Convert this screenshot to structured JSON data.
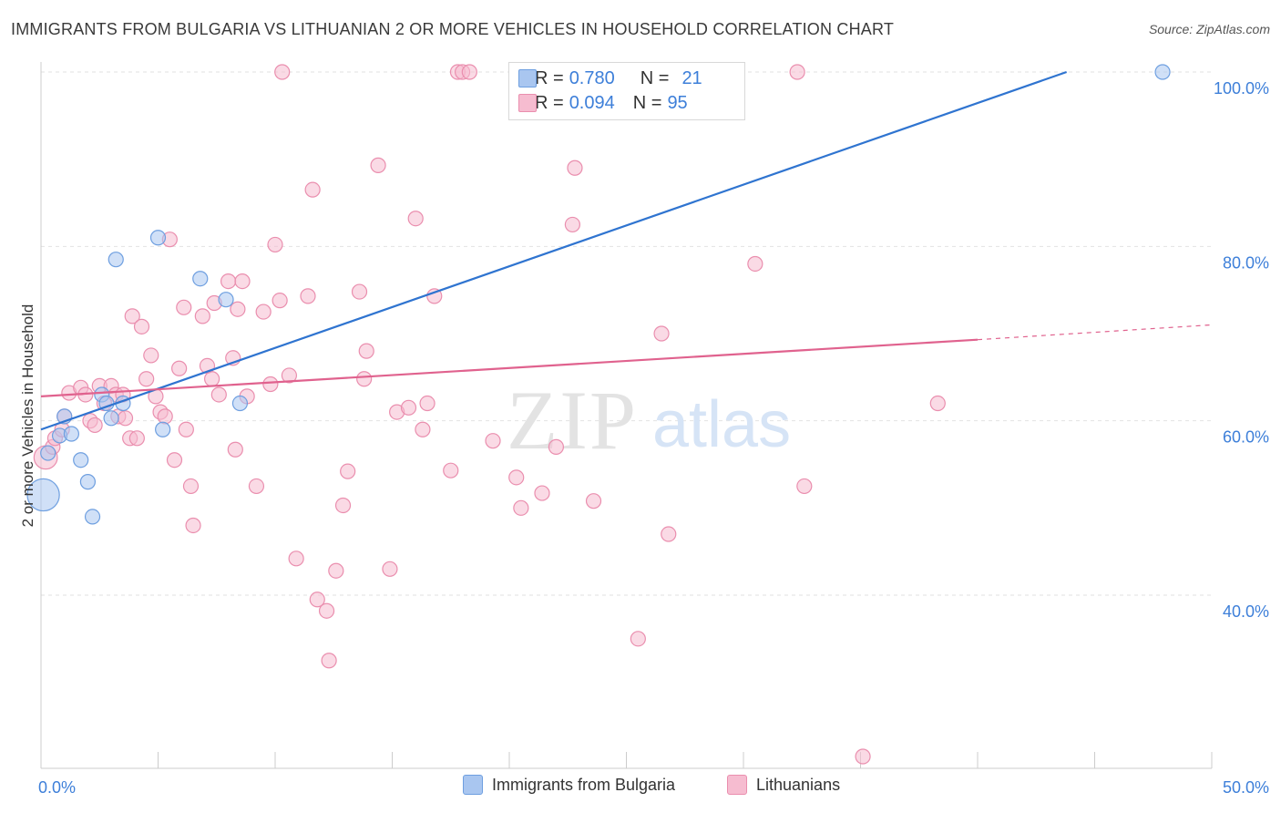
{
  "header": {
    "title": "IMMIGRANTS FROM BULGARIA VS LITHUANIAN 2 OR MORE VEHICLES IN HOUSEHOLD CORRELATION CHART",
    "source": "Source: ZipAtlas.com"
  },
  "watermark": {
    "zip": "ZIP",
    "atlas": "atlas"
  },
  "legend": {
    "series1": {
      "r_label": "R =",
      "r_value": "0.780",
      "n_label": "N =",
      "n_value": "21"
    },
    "series2": {
      "r_label": "R =",
      "r_value": "0.094",
      "n_label": "N =",
      "n_value": "95"
    }
  },
  "bottom_legend": {
    "series1_label": "Immigrants from Bulgaria",
    "series2_label": "Lithuanians"
  },
  "colors": {
    "blue_fill": "#a9c6f0",
    "blue_stroke": "#6e9fe0",
    "blue_line": "#2f74d0",
    "pink_fill": "#f6bcd0",
    "pink_stroke": "#ea8eae",
    "pink_line": "#e0628e",
    "grid": "#e2e2e2",
    "tick_text": "#3d7fd9"
  },
  "chart_data": {
    "type": "scatter",
    "title": "IMMIGRANTS FROM BULGARIA VS LITHUANIAN 2 OR MORE VEHICLES IN HOUSEHOLD CORRELATION CHART",
    "xlabel": "",
    "ylabel": "2 or more Vehicles in Household",
    "xlim": [
      0,
      50
    ],
    "ylim": [
      20,
      102
    ],
    "x_tick_labels": [
      {
        "value": 0,
        "label": "0.0%"
      },
      {
        "value": 50,
        "label": "50.0%"
      }
    ],
    "y_tick_labels": [
      {
        "value": 40,
        "label": "40.0%"
      },
      {
        "value": 60,
        "label": "60.0%"
      },
      {
        "value": 80,
        "label": "80.0%"
      },
      {
        "value": 100,
        "label": "100.0%"
      }
    ],
    "series": [
      {
        "name": "Immigrants from Bulgaria",
        "color": "#a9c6f0",
        "points": [
          [
            0.1,
            51.5,
            2.2
          ],
          [
            0.3,
            56.3,
            1
          ],
          [
            0.8,
            58.3,
            1
          ],
          [
            1.0,
            60.5,
            1
          ],
          [
            1.3,
            58.5,
            1
          ],
          [
            1.7,
            55.5,
            1
          ],
          [
            2.0,
            53.0,
            1
          ],
          [
            2.2,
            49.0,
            1
          ],
          [
            2.6,
            63.0,
            1
          ],
          [
            2.8,
            62.0,
            1
          ],
          [
            3.0,
            60.3,
            1
          ],
          [
            3.2,
            78.5,
            1
          ],
          [
            3.5,
            62.0,
            1
          ],
          [
            5.0,
            81.0,
            1
          ],
          [
            5.2,
            59.0,
            1
          ],
          [
            6.8,
            76.3,
            1
          ],
          [
            7.9,
            73.9,
            1
          ],
          [
            8.5,
            62.0,
            1
          ],
          [
            47.9,
            100.0,
            1
          ]
        ],
        "trend": {
          "x": [
            0,
            43.8
          ],
          "y": [
            59.0,
            100.0
          ],
          "style": "solid"
        }
      },
      {
        "name": "Lithuanians",
        "color": "#f6bcd0",
        "points": [
          [
            0.2,
            55.8,
            1.6
          ],
          [
            0.5,
            57.0,
            1
          ],
          [
            0.6,
            58.0,
            1
          ],
          [
            0.9,
            59.0,
            1
          ],
          [
            1.0,
            60.5,
            1
          ],
          [
            1.2,
            63.2,
            1
          ],
          [
            1.7,
            63.8,
            1
          ],
          [
            1.9,
            63.0,
            1
          ],
          [
            2.1,
            60.0,
            1
          ],
          [
            2.3,
            59.5,
            1
          ],
          [
            2.5,
            64.0,
            1
          ],
          [
            2.7,
            62.0,
            1
          ],
          [
            3.0,
            64.0,
            1
          ],
          [
            3.2,
            63.0,
            1
          ],
          [
            3.3,
            60.5,
            1
          ],
          [
            3.5,
            63.0,
            1
          ],
          [
            3.6,
            60.3,
            1
          ],
          [
            3.8,
            58.0,
            1
          ],
          [
            3.9,
            72.0,
            1
          ],
          [
            4.1,
            58.0,
            1
          ],
          [
            4.3,
            70.8,
            1
          ],
          [
            4.5,
            64.8,
            1
          ],
          [
            4.7,
            67.5,
            1
          ],
          [
            4.9,
            62.8,
            1
          ],
          [
            5.1,
            61.0,
            1
          ],
          [
            5.3,
            60.5,
            1
          ],
          [
            5.5,
            80.8,
            1
          ],
          [
            5.7,
            55.5,
            1
          ],
          [
            5.9,
            66.0,
            1
          ],
          [
            6.1,
            73.0,
            1
          ],
          [
            6.2,
            59.0,
            1
          ],
          [
            6.4,
            52.5,
            1
          ],
          [
            6.5,
            48.0,
            1
          ],
          [
            6.9,
            72.0,
            1
          ],
          [
            7.1,
            66.3,
            1
          ],
          [
            7.3,
            64.8,
            1
          ],
          [
            7.4,
            73.5,
            1
          ],
          [
            7.6,
            63.0,
            1
          ],
          [
            8.0,
            76.0,
            1
          ],
          [
            8.2,
            67.2,
            1
          ],
          [
            8.3,
            56.7,
            1
          ],
          [
            8.4,
            72.8,
            1
          ],
          [
            8.6,
            76.0,
            1
          ],
          [
            8.8,
            62.8,
            1
          ],
          [
            9.2,
            52.5,
            1
          ],
          [
            9.5,
            72.5,
            1
          ],
          [
            9.8,
            64.2,
            1
          ],
          [
            10.0,
            80.2,
            1
          ],
          [
            10.2,
            73.8,
            1
          ],
          [
            10.3,
            100.0,
            1
          ],
          [
            10.6,
            65.2,
            1
          ],
          [
            10.9,
            44.2,
            1
          ],
          [
            11.4,
            74.3,
            1
          ],
          [
            11.6,
            86.5,
            1
          ],
          [
            11.8,
            39.5,
            1
          ],
          [
            12.2,
            38.2,
            1
          ],
          [
            12.3,
            32.5,
            1
          ],
          [
            12.6,
            42.8,
            1
          ],
          [
            12.9,
            50.3,
            1
          ],
          [
            13.1,
            54.2,
            1
          ],
          [
            13.6,
            74.8,
            1
          ],
          [
            13.8,
            64.8,
            1
          ],
          [
            13.9,
            68.0,
            1
          ],
          [
            14.4,
            89.3,
            1
          ],
          [
            14.9,
            43.0,
            1
          ],
          [
            15.2,
            61.0,
            1
          ],
          [
            15.7,
            61.5,
            1
          ],
          [
            16.0,
            83.2,
            1
          ],
          [
            16.3,
            59.0,
            1
          ],
          [
            16.5,
            62.0,
            1
          ],
          [
            16.8,
            74.3,
            1
          ],
          [
            17.5,
            54.3,
            1
          ],
          [
            17.8,
            100.0,
            1
          ],
          [
            18.0,
            100.0,
            1
          ],
          [
            18.3,
            100.0,
            1
          ],
          [
            19.3,
            57.7,
            1
          ],
          [
            20.3,
            53.5,
            1
          ],
          [
            20.5,
            50.0,
            1
          ],
          [
            21.4,
            51.7,
            1
          ],
          [
            22.0,
            57.0,
            1
          ],
          [
            22.7,
            82.5,
            1
          ],
          [
            22.8,
            89.0,
            1
          ],
          [
            23.6,
            50.8,
            1
          ],
          [
            25.5,
            35.0,
            1
          ],
          [
            26.5,
            70.0,
            1
          ],
          [
            26.8,
            47.0,
            1
          ],
          [
            30.5,
            78.0,
            1
          ],
          [
            32.3,
            100.0,
            1
          ],
          [
            32.6,
            52.5,
            1
          ],
          [
            38.3,
            62.0,
            1
          ],
          [
            35.1,
            21.5,
            1
          ]
        ],
        "trend": {
          "x": [
            0,
            40.0
          ],
          "y": [
            62.8,
            69.3
          ],
          "style": "solid",
          "extension": {
            "x": [
              40.0,
              50.0
            ],
            "y": [
              69.3,
              71.0
            ],
            "style": "dashed"
          }
        }
      }
    ]
  }
}
